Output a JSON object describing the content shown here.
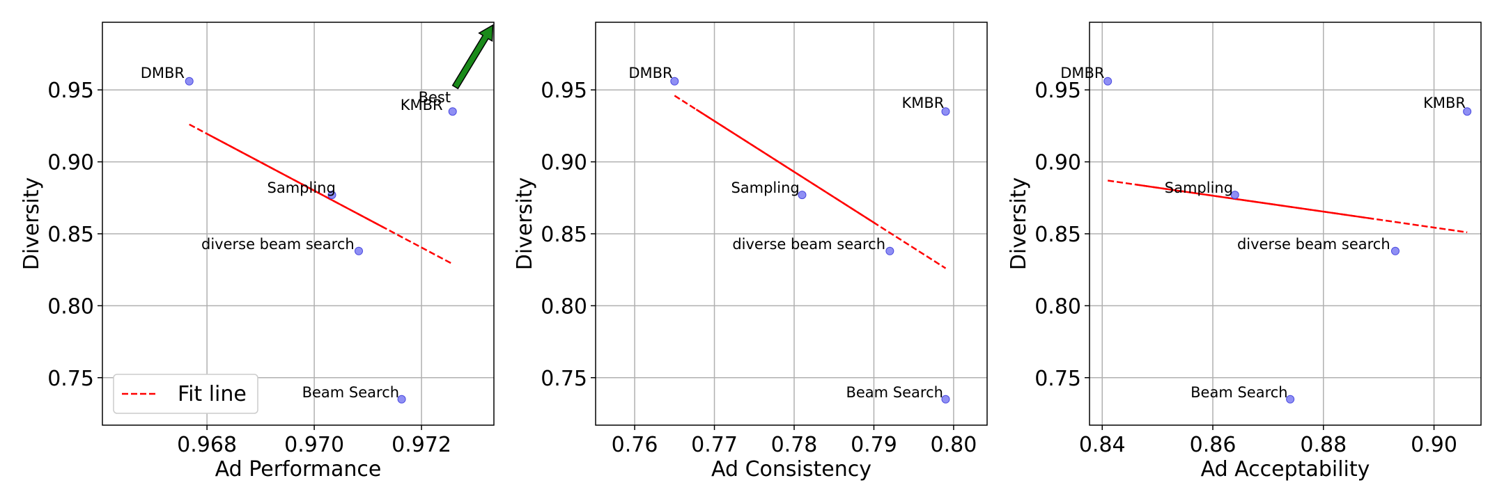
{
  "colors": {
    "point": "#7b7bf2",
    "point_edge": "#4a4ae0",
    "fit_line": "#ff0000",
    "arrow": "#1a8a1a",
    "grid": "#b0b0b0"
  },
  "chart_data": [
    {
      "type": "scatter",
      "xlabel": "Ad Performance",
      "ylabel": "Diversity",
      "xlim": [
        0.96605,
        0.97335
      ],
      "ylim": [
        0.717,
        0.997
      ],
      "xticks": [
        {
          "value": 0.968,
          "label": "0.968"
        },
        {
          "value": 0.97,
          "label": "0.970"
        },
        {
          "value": 0.972,
          "label": "0.972"
        }
      ],
      "yticks": [
        {
          "value": 0.75,
          "label": "0.75"
        },
        {
          "value": 0.8,
          "label": "0.80"
        },
        {
          "value": 0.85,
          "label": "0.85"
        },
        {
          "value": 0.9,
          "label": "0.90"
        },
        {
          "value": 0.95,
          "label": "0.95"
        }
      ],
      "points": [
        {
          "label": "DMBR",
          "x": 0.96767,
          "y": 0.956
        },
        {
          "label": "KMBR",
          "x": 0.97258,
          "y": 0.935
        },
        {
          "label": "Sampling",
          "x": 0.97033,
          "y": 0.877
        },
        {
          "label": "diverse beam search",
          "x": 0.97083,
          "y": 0.838
        },
        {
          "label": "Beam Search",
          "x": 0.97163,
          "y": 0.735
        }
      ],
      "fit_line": {
        "x": [
          0.96767,
          0.97258
        ],
        "y": [
          0.926,
          0.829
        ]
      },
      "legend": {
        "label": "Fit line",
        "location": "lower-left"
      },
      "annotation": {
        "text": "Best",
        "x_from": 0.97263,
        "y_from": 0.952,
        "x_to": 0.97333,
        "y_to": 0.995
      }
    },
    {
      "type": "scatter",
      "xlabel": "Ad Consistency",
      "ylabel": "Diversity",
      "xlim": [
        0.7551,
        0.8042
      ],
      "ylim": [
        0.717,
        0.997
      ],
      "xticks": [
        {
          "value": 0.76,
          "label": "0.76"
        },
        {
          "value": 0.77,
          "label": "0.77"
        },
        {
          "value": 0.78,
          "label": "0.78"
        },
        {
          "value": 0.79,
          "label": "0.79"
        },
        {
          "value": 0.8,
          "label": "0.80"
        }
      ],
      "yticks": [
        {
          "value": 0.75,
          "label": "0.75"
        },
        {
          "value": 0.8,
          "label": "0.80"
        },
        {
          "value": 0.85,
          "label": "0.85"
        },
        {
          "value": 0.9,
          "label": "0.90"
        },
        {
          "value": 0.95,
          "label": "0.95"
        }
      ],
      "points": [
        {
          "label": "DMBR",
          "x": 0.765,
          "y": 0.956
        },
        {
          "label": "KMBR",
          "x": 0.799,
          "y": 0.935
        },
        {
          "label": "Sampling",
          "x": 0.781,
          "y": 0.877
        },
        {
          "label": "diverse beam search",
          "x": 0.792,
          "y": 0.838
        },
        {
          "label": "Beam Search",
          "x": 0.799,
          "y": 0.735
        }
      ],
      "fit_line": {
        "x": [
          0.765,
          0.799
        ],
        "y": [
          0.946,
          0.826
        ]
      }
    },
    {
      "type": "scatter",
      "xlabel": "Ad Acceptability",
      "ylabel": "Diversity",
      "xlim": [
        0.8377,
        0.9085
      ],
      "ylim": [
        0.717,
        0.997
      ],
      "xticks": [
        {
          "value": 0.84,
          "label": "0.84"
        },
        {
          "value": 0.86,
          "label": "0.86"
        },
        {
          "value": 0.88,
          "label": "0.88"
        },
        {
          "value": 0.9,
          "label": "0.90"
        }
      ],
      "yticks": [
        {
          "value": 0.75,
          "label": "0.75"
        },
        {
          "value": 0.8,
          "label": "0.80"
        },
        {
          "value": 0.85,
          "label": "0.85"
        },
        {
          "value": 0.9,
          "label": "0.90"
        },
        {
          "value": 0.95,
          "label": "0.95"
        }
      ],
      "points": [
        {
          "label": "DMBR",
          "x": 0.841,
          "y": 0.956
        },
        {
          "label": "KMBR",
          "x": 0.906,
          "y": 0.935
        },
        {
          "label": "Sampling",
          "x": 0.864,
          "y": 0.877
        },
        {
          "label": "diverse beam search",
          "x": 0.893,
          "y": 0.838
        },
        {
          "label": "Beam Search",
          "x": 0.874,
          "y": 0.735
        }
      ],
      "fit_line": {
        "x": [
          0.841,
          0.906
        ],
        "y": [
          0.887,
          0.851
        ]
      }
    }
  ]
}
